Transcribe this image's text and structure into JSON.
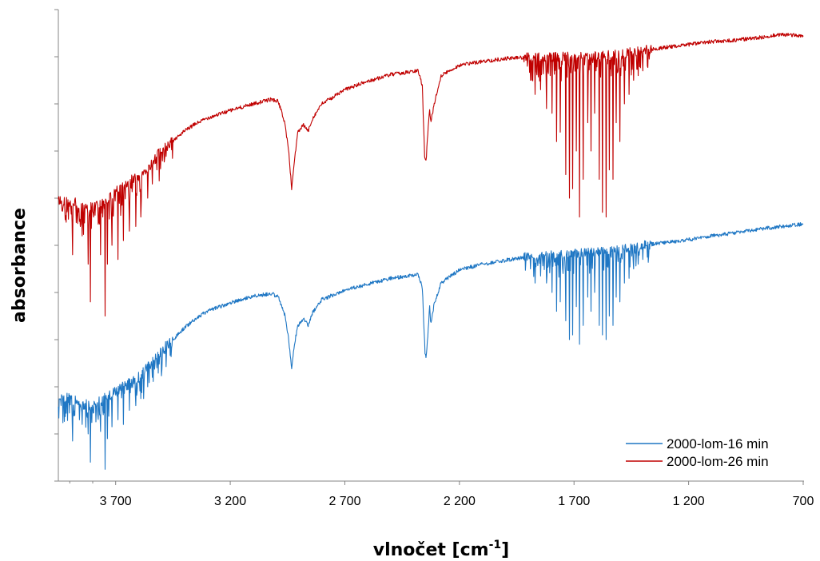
{
  "chart_data": {
    "type": "line",
    "title": "",
    "xlabel_main": "vlnočet [cm",
    "xlabel_sup": "-1",
    "xlabel_close": "]",
    "ylabel": "absorbance",
    "xlim": [
      3950,
      700
    ],
    "x_reversed": true,
    "x_ticks": [
      3700,
      3200,
      2700,
      2200,
      1700,
      1200,
      700
    ],
    "x_tick_labels": [
      "3 700",
      "3 200",
      "2 700",
      "2 200",
      "1 700",
      "1 200",
      "700"
    ],
    "y_tick_count": 10,
    "y_tick_labels_shown": false,
    "grid": false,
    "legend_position": "bottom-right",
    "series": [
      {
        "name": "2000-lom-16 min",
        "color": "#1f77c4",
        "noise_seed": 17,
        "points": [
          [
            3950,
            0.18
          ],
          [
            3900,
            0.175
          ],
          [
            3850,
            0.165
          ],
          [
            3800,
            0.16
          ],
          [
            3750,
            0.175
          ],
          [
            3700,
            0.19
          ],
          [
            3650,
            0.205
          ],
          [
            3600,
            0.22
          ],
          [
            3550,
            0.245
          ],
          [
            3500,
            0.275
          ],
          [
            3450,
            0.3
          ],
          [
            3400,
            0.325
          ],
          [
            3350,
            0.345
          ],
          [
            3300,
            0.36
          ],
          [
            3200,
            0.378
          ],
          [
            3100,
            0.392
          ],
          [
            3020,
            0.398
          ],
          [
            2990,
            0.39
          ],
          [
            2960,
            0.35
          ],
          [
            2945,
            0.3
          ],
          [
            2932,
            0.24
          ],
          [
            2920,
            0.29
          ],
          [
            2905,
            0.33
          ],
          [
            2880,
            0.345
          ],
          [
            2860,
            0.33
          ],
          [
            2840,
            0.358
          ],
          [
            2800,
            0.385
          ],
          [
            2700,
            0.405
          ],
          [
            2600,
            0.418
          ],
          [
            2500,
            0.43
          ],
          [
            2380,
            0.438
          ],
          [
            2362,
            0.41
          ],
          [
            2350,
            0.27
          ],
          [
            2345,
            0.26
          ],
          [
            2335,
            0.33
          ],
          [
            2330,
            0.37
          ],
          [
            2325,
            0.335
          ],
          [
            2310,
            0.375
          ],
          [
            2280,
            0.42
          ],
          [
            2200,
            0.448
          ],
          [
            2100,
            0.46
          ],
          [
            2000,
            0.468
          ],
          [
            1900,
            0.476
          ],
          [
            1850,
            0.478
          ],
          [
            1800,
            0.48
          ],
          [
            1700,
            0.482
          ],
          [
            1600,
            0.486
          ],
          [
            1500,
            0.492
          ],
          [
            1450,
            0.496
          ],
          [
            1400,
            0.5
          ],
          [
            1300,
            0.506
          ],
          [
            1200,
            0.512
          ],
          [
            1100,
            0.52
          ],
          [
            1000,
            0.526
          ],
          [
            900,
            0.534
          ],
          [
            800,
            0.54
          ],
          [
            700,
            0.545
          ]
        ],
        "spikes": [
          [
            3888,
            0.085
          ],
          [
            3845,
            0.12
          ],
          [
            3810,
            0.04
          ],
          [
            3765,
            0.105
          ],
          [
            3745,
            0.025
          ],
          [
            3735,
            0.09
          ],
          [
            3715,
            0.115
          ],
          [
            3690,
            0.13
          ],
          [
            3665,
            0.12
          ],
          [
            3640,
            0.15
          ],
          [
            3612,
            0.16
          ],
          [
            3590,
            0.175
          ],
          [
            3560,
            0.2
          ],
          [
            3540,
            0.22
          ],
          [
            3520,
            0.24
          ],
          [
            3820,
            0.1
          ],
          [
            3795,
            0.145
          ],
          [
            3755,
            0.15
          ],
          [
            1890,
            0.45
          ],
          [
            1870,
            0.42
          ],
          [
            1845,
            0.435
          ],
          [
            1820,
            0.42
          ],
          [
            1795,
            0.4
          ],
          [
            1775,
            0.36
          ],
          [
            1760,
            0.38
          ],
          [
            1735,
            0.34
          ],
          [
            1720,
            0.3
          ],
          [
            1705,
            0.31
          ],
          [
            1690,
            0.37
          ],
          [
            1675,
            0.29
          ],
          [
            1660,
            0.33
          ],
          [
            1640,
            0.39
          ],
          [
            1625,
            0.36
          ],
          [
            1610,
            0.4
          ],
          [
            1590,
            0.33
          ],
          [
            1575,
            0.31
          ],
          [
            1560,
            0.3
          ],
          [
            1545,
            0.35
          ],
          [
            1530,
            0.33
          ],
          [
            1515,
            0.39
          ],
          [
            1500,
            0.38
          ],
          [
            1480,
            0.42
          ],
          [
            1460,
            0.43
          ],
          [
            1440,
            0.45
          ],
          [
            1420,
            0.46
          ],
          [
            1400,
            0.47
          ],
          [
            1380,
            0.475
          ]
        ]
      },
      {
        "name": "2000-lom-26 min",
        "color": "#c00000",
        "noise_seed": 42,
        "points": [
          [
            3950,
            0.595
          ],
          [
            3900,
            0.592
          ],
          [
            3850,
            0.585
          ],
          [
            3800,
            0.58
          ],
          [
            3750,
            0.595
          ],
          [
            3700,
            0.612
          ],
          [
            3650,
            0.63
          ],
          [
            3600,
            0.648
          ],
          [
            3550,
            0.672
          ],
          [
            3500,
            0.7
          ],
          [
            3450,
            0.722
          ],
          [
            3400,
            0.742
          ],
          [
            3350,
            0.758
          ],
          [
            3300,
            0.77
          ],
          [
            3200,
            0.786
          ],
          [
            3100,
            0.8
          ],
          [
            3020,
            0.81
          ],
          [
            2990,
            0.805
          ],
          [
            2962,
            0.76
          ],
          [
            2945,
            0.7
          ],
          [
            2932,
            0.62
          ],
          [
            2920,
            0.68
          ],
          [
            2905,
            0.74
          ],
          [
            2880,
            0.755
          ],
          [
            2860,
            0.742
          ],
          [
            2840,
            0.77
          ],
          [
            2800,
            0.8
          ],
          [
            2700,
            0.83
          ],
          [
            2600,
            0.848
          ],
          [
            2500,
            0.862
          ],
          [
            2380,
            0.87
          ],
          [
            2362,
            0.84
          ],
          [
            2352,
            0.69
          ],
          [
            2345,
            0.682
          ],
          [
            2335,
            0.76
          ],
          [
            2330,
            0.79
          ],
          [
            2325,
            0.76
          ],
          [
            2310,
            0.8
          ],
          [
            2280,
            0.86
          ],
          [
            2200,
            0.882
          ],
          [
            2100,
            0.89
          ],
          [
            2000,
            0.896
          ],
          [
            1900,
            0.899
          ],
          [
            1850,
            0.899
          ],
          [
            1800,
            0.9
          ],
          [
            1700,
            0.9
          ],
          [
            1600,
            0.902
          ],
          [
            1500,
            0.905
          ],
          [
            1450,
            0.91
          ],
          [
            1400,
            0.914
          ],
          [
            1300,
            0.92
          ],
          [
            1200,
            0.926
          ],
          [
            1100,
            0.932
          ],
          [
            1000,
            0.935
          ],
          [
            900,
            0.94
          ],
          [
            800,
            0.947
          ],
          [
            700,
            0.945
          ]
        ],
        "spikes": [
          [
            3888,
            0.48
          ],
          [
            3845,
            0.52
          ],
          [
            3810,
            0.38
          ],
          [
            3765,
            0.48
          ],
          [
            3745,
            0.35
          ],
          [
            3735,
            0.46
          ],
          [
            3715,
            0.5
          ],
          [
            3690,
            0.47
          ],
          [
            3665,
            0.51
          ],
          [
            3640,
            0.53
          ],
          [
            3612,
            0.54
          ],
          [
            3590,
            0.56
          ],
          [
            3560,
            0.6
          ],
          [
            3540,
            0.63
          ],
          [
            3520,
            0.66
          ],
          [
            3820,
            0.46
          ],
          [
            3795,
            0.56
          ],
          [
            3755,
            0.56
          ],
          [
            1890,
            0.85
          ],
          [
            1870,
            0.82
          ],
          [
            1845,
            0.83
          ],
          [
            1820,
            0.79
          ],
          [
            1795,
            0.78
          ],
          [
            1775,
            0.72
          ],
          [
            1760,
            0.74
          ],
          [
            1735,
            0.65
          ],
          [
            1720,
            0.6
          ],
          [
            1705,
            0.62
          ],
          [
            1690,
            0.7
          ],
          [
            1675,
            0.56
          ],
          [
            1660,
            0.64
          ],
          [
            1640,
            0.76
          ],
          [
            1625,
            0.7
          ],
          [
            1610,
            0.78
          ],
          [
            1590,
            0.64
          ],
          [
            1575,
            0.57
          ],
          [
            1560,
            0.56
          ],
          [
            1545,
            0.66
          ],
          [
            1530,
            0.64
          ],
          [
            1515,
            0.76
          ],
          [
            1500,
            0.72
          ],
          [
            1480,
            0.8
          ],
          [
            1460,
            0.82
          ],
          [
            1440,
            0.85
          ],
          [
            1420,
            0.86
          ],
          [
            1400,
            0.87
          ],
          [
            1380,
            0.88
          ]
        ]
      }
    ]
  }
}
